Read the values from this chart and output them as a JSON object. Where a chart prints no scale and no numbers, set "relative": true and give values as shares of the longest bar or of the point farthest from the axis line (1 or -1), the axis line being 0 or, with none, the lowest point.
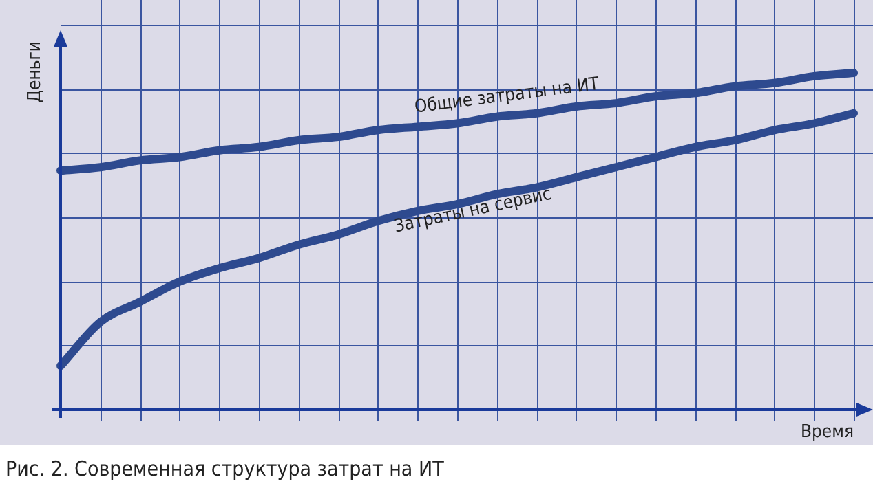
{
  "chart_data": {
    "type": "line",
    "relative": true,
    "xlabel": "Время",
    "ylabel": "Деньги",
    "grid": true,
    "legend": false,
    "marker": "none",
    "line_style": "solid",
    "categories": [
      null,
      null,
      null,
      null,
      null,
      null,
      null,
      null,
      null,
      null,
      null,
      null,
      null,
      null,
      null,
      null,
      null,
      null,
      null,
      null,
      null
    ],
    "series": [
      {
        "name": "Общие затраты на ИТ",
        "color": "#2e4a8f",
        "values": [
          0.71,
          0.72,
          0.74,
          0.75,
          0.77,
          0.78,
          0.8,
          0.81,
          0.83,
          0.84,
          0.85,
          0.87,
          0.88,
          0.9,
          0.91,
          0.93,
          0.94,
          0.96,
          0.97,
          0.99,
          1.0
        ]
      },
      {
        "name": "Затраты на сервис",
        "color": "#2e4a8f",
        "values": [
          0.13,
          0.26,
          0.32,
          0.38,
          0.42,
          0.45,
          0.49,
          0.52,
          0.56,
          0.59,
          0.61,
          0.64,
          0.66,
          0.69,
          0.72,
          0.75,
          0.78,
          0.8,
          0.83,
          0.85,
          0.88
        ]
      }
    ],
    "annotations": [
      "Рис. 2. Современная структура затрат на ИТ"
    ]
  }
}
